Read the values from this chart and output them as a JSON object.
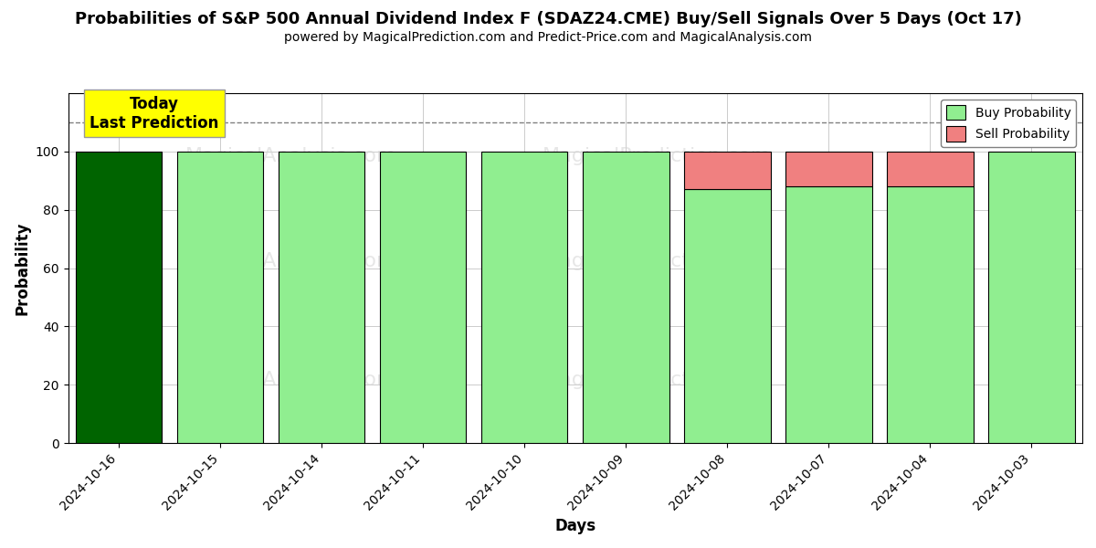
{
  "title": "Probabilities of S&P 500 Annual Dividend Index F (SDAZ24.CME) Buy/Sell Signals Over 5 Days (Oct 17)",
  "subtitle": "powered by MagicalPrediction.com and Predict-Price.com and MagicalAnalysis.com",
  "xlabel": "Days",
  "ylabel": "Probability",
  "dates": [
    "2024-10-16",
    "2024-10-15",
    "2024-10-14",
    "2024-10-11",
    "2024-10-10",
    "2024-10-09",
    "2024-10-08",
    "2024-10-07",
    "2024-10-04",
    "2024-10-03"
  ],
  "buy_probs": [
    100,
    100,
    100,
    100,
    100,
    100,
    87,
    88,
    88,
    100
  ],
  "sell_probs": [
    0,
    0,
    0,
    0,
    0,
    0,
    13,
    12,
    12,
    0
  ],
  "today_bar_color": "#006400",
  "buy_color": "#90EE90",
  "sell_color": "#F08080",
  "dashed_line_y": 110,
  "ylim": [
    0,
    120
  ],
  "yticks": [
    0,
    20,
    40,
    60,
    80,
    100
  ],
  "background_color": "#ffffff",
  "grid_color": "#cccccc",
  "today_label": "Today\nLast Prediction",
  "today_label_bg": "#ffff00",
  "legend_buy": "Buy Probability",
  "legend_sell": "Sell Probability",
  "title_fontsize": 13,
  "subtitle_fontsize": 10,
  "axis_label_fontsize": 12,
  "bar_width": 0.85
}
